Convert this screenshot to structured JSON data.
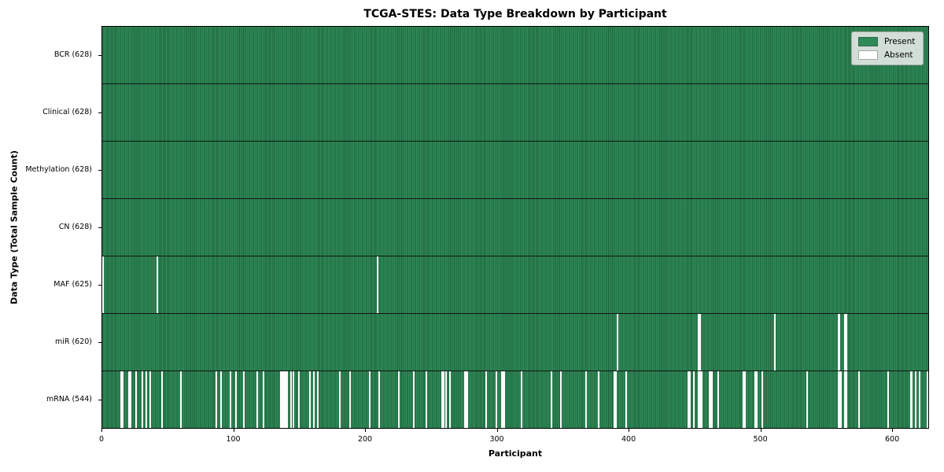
{
  "title": "TCGA-STES: Data Type Breakdown by Participant",
  "chart_data": {
    "type": "heatmap",
    "title": "TCGA-STES: Data Type Breakdown by Participant",
    "xlabel": "Participant",
    "ylabel": "Data Type (Total Sample Count)",
    "x_ticks": [
      0,
      100,
      200,
      300,
      400,
      500,
      600
    ],
    "x_range": [
      0,
      628
    ],
    "n_participants": 628,
    "grid": "row-dividers",
    "legend": {
      "position": "upper right",
      "entries": [
        {
          "label": "Present",
          "color": "#2e8b57"
        },
        {
          "label": "Absent",
          "color": "#ffffff"
        }
      ]
    },
    "colors": {
      "present": "#2e8b57",
      "present_edge": "#1d5f3b",
      "absent": "#ffffff",
      "row_divider": "#141414"
    },
    "rows": [
      {
        "label": "BCR (628)",
        "data_type": "BCR",
        "present_count": 628,
        "absent_participants": []
      },
      {
        "label": "Clinical (628)",
        "data_type": "Clinical",
        "present_count": 628,
        "absent_participants": []
      },
      {
        "label": "Methylation (628)",
        "data_type": "Methylation",
        "present_count": 628,
        "absent_participants": []
      },
      {
        "label": "CN (628)",
        "data_type": "CN",
        "present_count": 628,
        "absent_participants": []
      },
      {
        "label": "MAF (625)",
        "data_type": "MAF",
        "present_count": 625,
        "absent_participants": [
          0,
          41,
          209
        ]
      },
      {
        "label": "miR (620)",
        "data_type": "miR",
        "present_count": 620,
        "absent_participants": [
          391,
          453,
          454,
          511,
          559,
          560,
          564,
          565
        ]
      },
      {
        "label": "mRNA (544)",
        "data_type": "mRNA",
        "present_count": 544,
        "absent_participants": [
          14,
          15,
          20,
          21,
          25,
          30,
          33,
          36,
          45,
          59,
          86,
          90,
          97,
          101,
          107,
          117,
          122,
          135,
          136,
          137,
          138,
          139,
          140,
          143,
          145,
          149,
          157,
          160,
          163,
          180,
          188,
          203,
          210,
          225,
          236,
          246,
          258,
          259,
          261,
          264,
          275,
          276,
          277,
          291,
          299,
          303,
          304,
          305,
          318,
          341,
          348,
          367,
          377,
          389,
          390,
          398,
          445,
          446,
          449,
          453,
          454,
          455,
          461,
          462,
          463,
          468,
          487,
          488,
          496,
          497,
          501,
          535,
          559,
          560,
          561,
          564,
          565,
          575,
          597,
          614,
          615,
          618,
          621,
          627
        ]
      }
    ]
  }
}
